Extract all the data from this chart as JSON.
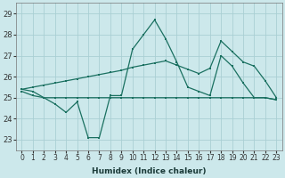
{
  "xlabel": "Humidex (Indice chaleur)",
  "xlim": [
    -0.5,
    23.5
  ],
  "ylim": [
    22.5,
    29.5
  ],
  "yticks": [
    23,
    24,
    25,
    26,
    27,
    28,
    29
  ],
  "xticks": [
    0,
    1,
    2,
    3,
    4,
    5,
    6,
    7,
    8,
    9,
    10,
    11,
    12,
    13,
    14,
    15,
    16,
    17,
    18,
    19,
    20,
    21,
    22,
    23
  ],
  "bg_color": "#cce8eb",
  "grid_color": "#aacfd4",
  "line_color": "#1a7060",
  "line1_x": [
    0,
    1,
    2,
    3,
    4,
    5,
    6,
    7,
    8,
    9,
    10,
    11,
    12,
    13,
    14,
    15,
    16,
    17,
    18,
    19,
    20,
    21,
    22,
    23
  ],
  "line1_y": [
    25.4,
    25.3,
    25.0,
    24.7,
    24.3,
    24.8,
    23.1,
    23.1,
    25.1,
    25.1,
    27.3,
    28.0,
    28.7,
    27.8,
    26.7,
    25.5,
    25.3,
    25.1,
    27.0,
    26.5,
    25.7,
    25.0,
    25.0,
    24.9
  ],
  "line2_x": [
    0,
    1,
    2,
    3,
    4,
    5,
    6,
    7,
    8,
    9,
    10,
    11,
    12,
    13,
    14,
    15,
    16,
    17,
    18,
    19,
    20,
    21,
    22,
    23
  ],
  "line2_y": [
    25.3,
    25.1,
    25.0,
    25.0,
    25.0,
    25.0,
    25.0,
    25.0,
    25.0,
    25.0,
    25.0,
    25.0,
    25.0,
    25.0,
    25.0,
    25.0,
    25.0,
    25.0,
    25.0,
    25.0,
    25.0,
    25.0,
    25.0,
    24.9
  ],
  "line3_x": [
    0,
    1,
    2,
    3,
    4,
    5,
    6,
    7,
    8,
    9,
    10,
    11,
    12,
    13,
    14,
    15,
    16,
    17,
    18,
    19,
    20,
    21,
    22,
    23
  ],
  "line3_y": [
    25.4,
    25.5,
    25.6,
    25.7,
    25.8,
    25.9,
    26.0,
    26.1,
    26.2,
    26.3,
    26.45,
    26.55,
    26.65,
    26.75,
    26.55,
    26.35,
    26.15,
    26.4,
    27.7,
    27.2,
    26.7,
    26.5,
    25.8,
    25.0
  ]
}
